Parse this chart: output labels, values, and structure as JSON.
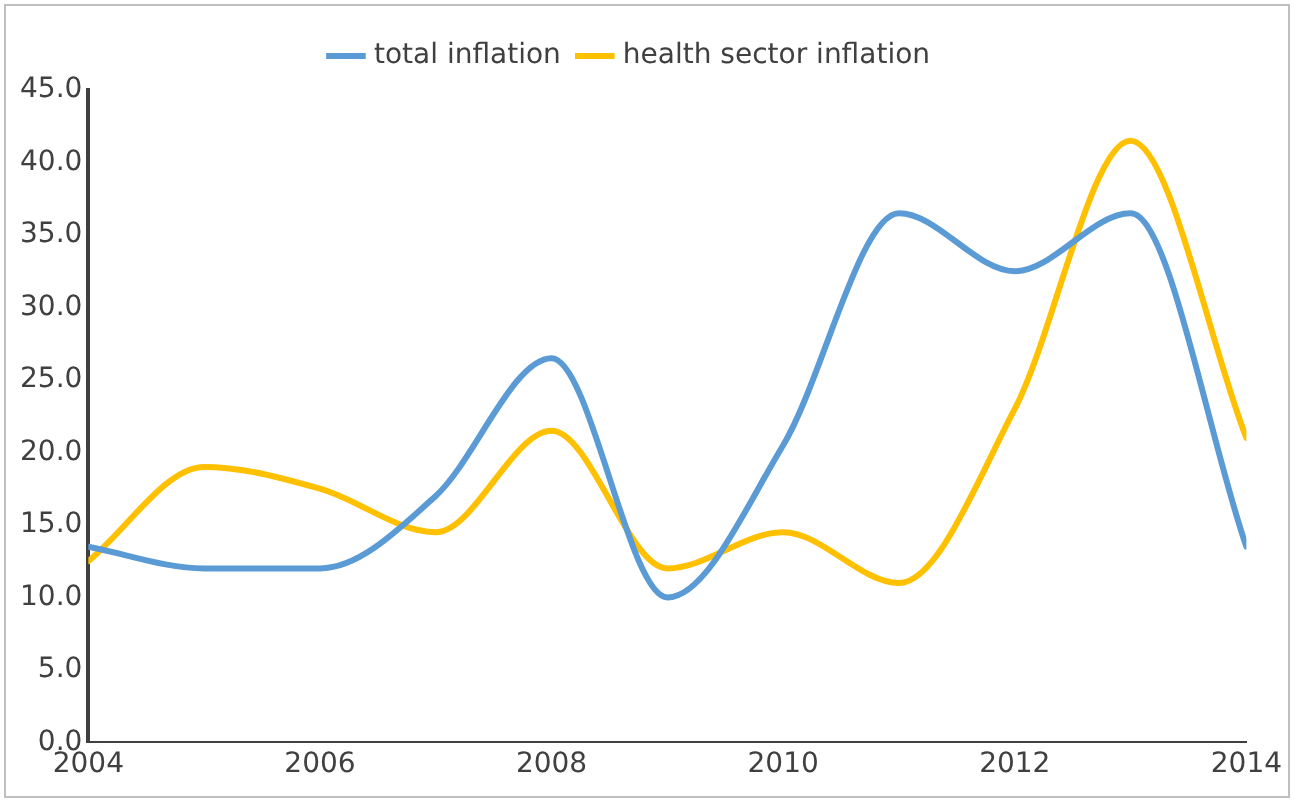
{
  "chart_data": {
    "type": "line",
    "x": [
      2004,
      2005,
      2006,
      2007,
      2008,
      2009,
      2010,
      2011,
      2012,
      2013,
      2014
    ],
    "series": [
      {
        "name": "total inflation",
        "color": "#5b9bd5",
        "values": [
          13.5,
          12,
          12,
          17,
          26.5,
          10,
          20.5,
          36.5,
          32.5,
          36.5,
          13.5
        ]
      },
      {
        "name": "health sector inflation",
        "color": "#ffc000",
        "values": [
          12.5,
          19,
          17.5,
          14.5,
          21.5,
          12,
          14.5,
          11,
          23,
          41.5,
          21
        ]
      }
    ],
    "xlim": [
      2004,
      2014
    ],
    "xticks": [
      2004,
      2006,
      2008,
      2010,
      2012,
      2014
    ],
    "ylim": [
      0,
      45
    ],
    "yticks": [
      {
        "value": 0,
        "label": "0.0"
      },
      {
        "value": 5,
        "label": "5.0"
      },
      {
        "value": 10,
        "label": "10.0"
      },
      {
        "value": 15,
        "label": "15.0"
      },
      {
        "value": 20,
        "label": "20.0"
      },
      {
        "value": 25,
        "label": "25.0"
      },
      {
        "value": 30,
        "label": "30.0"
      },
      {
        "value": 35,
        "label": "35.0"
      },
      {
        "value": 40,
        "label": "40.0"
      },
      {
        "value": 45,
        "label": "45.0"
      }
    ],
    "grid": false,
    "legend": "top",
    "marker": "none",
    "line_style": "solid"
  }
}
